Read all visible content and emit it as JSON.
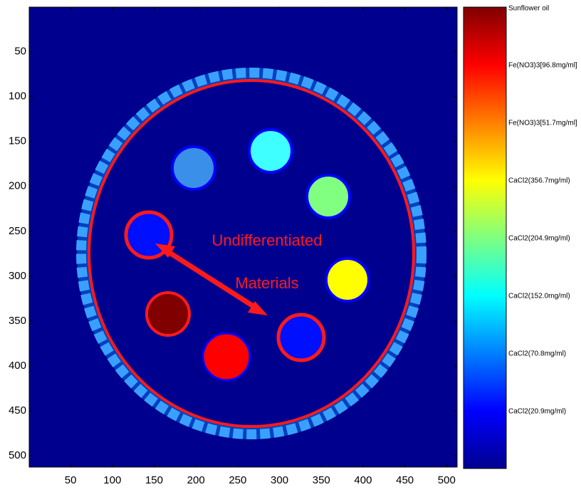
{
  "chart_data": {
    "type": "image",
    "xlim": [
      0.5,
      512.5
    ],
    "ylim": [
      0.5,
      512.5
    ],
    "y_reversed": true,
    "xticks": [
      50,
      100,
      150,
      200,
      250,
      300,
      350,
      400,
      450,
      500
    ],
    "yticks": [
      50,
      100,
      150,
      200,
      250,
      300,
      350,
      400,
      450,
      500
    ],
    "colorbar_labels": [
      "Sunflower oil",
      "Fe(NO3)3[96.8mg/ml]",
      "Fe(NO3)3[51.7mg/ml]",
      "CaCl2(356.7mg/ml)",
      "CaCl2(204.9mg/ml)",
      "CaCl2(152.0mg/ml)",
      "CaCl2(70.8mg/ml)",
      "CaCl2(20.9mg/ml)"
    ],
    "annotations": [
      "Undifferentiated",
      "Materials"
    ]
  }
}
